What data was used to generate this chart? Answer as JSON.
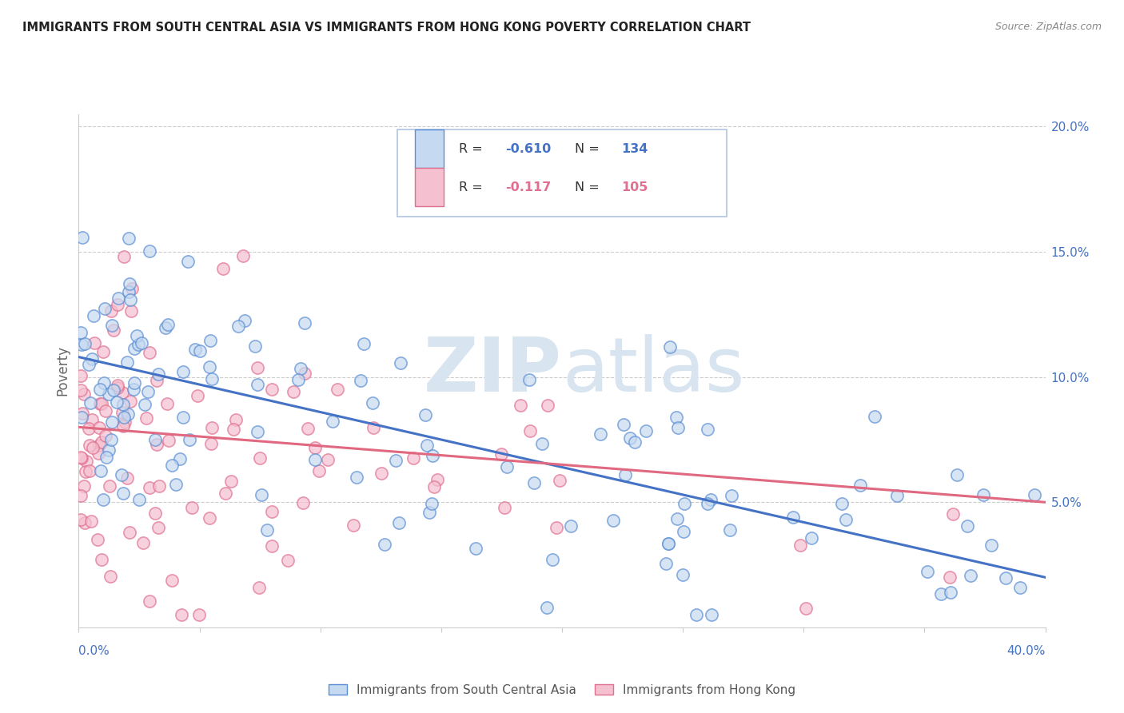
{
  "title": "IMMIGRANTS FROM SOUTH CENTRAL ASIA VS IMMIGRANTS FROM HONG KONG POVERTY CORRELATION CHART",
  "source": "Source: ZipAtlas.com",
  "ylabel": "Poverty",
  "legend_blue_rval": "-0.610",
  "legend_blue_nval": "134",
  "legend_pink_rval": "-0.117",
  "legend_pink_nval": "105",
  "legend_blue_label": "Immigrants from South Central Asia",
  "legend_pink_label": "Immigrants from Hong Kong",
  "blue_fill": "#c5d9f0",
  "pink_fill": "#f5c0d0",
  "blue_edge": "#5b8ed4",
  "pink_edge": "#e07090",
  "blue_line_color": "#4472c4",
  "pink_line_color": "#e06880",
  "blue_label_color": "#4472c4",
  "pink_label_color": "#e07090",
  "ytick_color": "#4472c4",
  "watermark_zip": "ZIP",
  "watermark_atlas": "atlas",
  "watermark_color": "#d8e4f0",
  "xmin": 0.0,
  "xmax": 0.4,
  "ymin": 0.0,
  "ymax": 0.205,
  "yticks": [
    0.05,
    0.1,
    0.15,
    0.2
  ],
  "ytick_labels": [
    "5.0%",
    "10.0%",
    "15.0%",
    "20.0%"
  ],
  "blue_line_x0": 0.0,
  "blue_line_y0": 0.108,
  "blue_line_x1": 0.4,
  "blue_line_y1": 0.02,
  "pink_line_x0": 0.0,
  "pink_line_y0": 0.08,
  "pink_line_x1": 0.4,
  "pink_line_y1": 0.05,
  "background": "#ffffff",
  "grid_color": "#cccccc",
  "spine_color": "#cccccc",
  "title_color": "#222222",
  "source_color": "#888888",
  "ylabel_color": "#666666",
  "dot_size": 120,
  "dot_alpha": 0.7,
  "dot_linewidth": 1.2
}
